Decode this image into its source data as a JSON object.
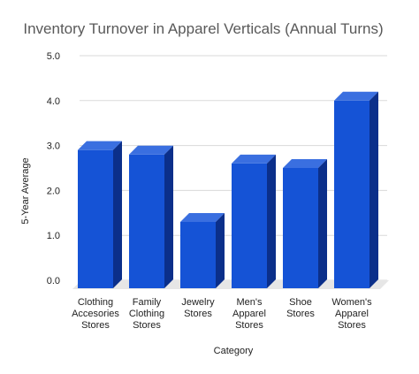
{
  "chart_data": {
    "type": "bar",
    "title": "Inventory Turnover in Apparel Verticals (Annual Turns)",
    "xlabel": "Category",
    "ylabel": "5-Year Average",
    "categories": [
      [
        "Clothing",
        "Accesories",
        "Stores"
      ],
      [
        "Family",
        "Clothing",
        "Stores"
      ],
      [
        "Jewelry",
        "Stores"
      ],
      [
        "Men's",
        "Apparel",
        "Stores"
      ],
      [
        "Shoe",
        "Stores"
      ],
      [
        "Women's",
        "Apparel",
        "Stores"
      ]
    ],
    "values": [
      2.9,
      2.8,
      1.3,
      2.6,
      2.5,
      4.0
    ],
    "ylim": [
      0,
      5
    ],
    "yticks": [
      "0.0",
      "1.0",
      "2.0",
      "3.0",
      "4.0",
      "5.0"
    ],
    "grid": true,
    "style": "3d-bar",
    "colors": {
      "bar_front": "#1553d6",
      "bar_top": "#3a6fe0",
      "bar_side": "#0b2f8a",
      "floor": "#e6e6e6",
      "grid": "#dadada"
    }
  }
}
